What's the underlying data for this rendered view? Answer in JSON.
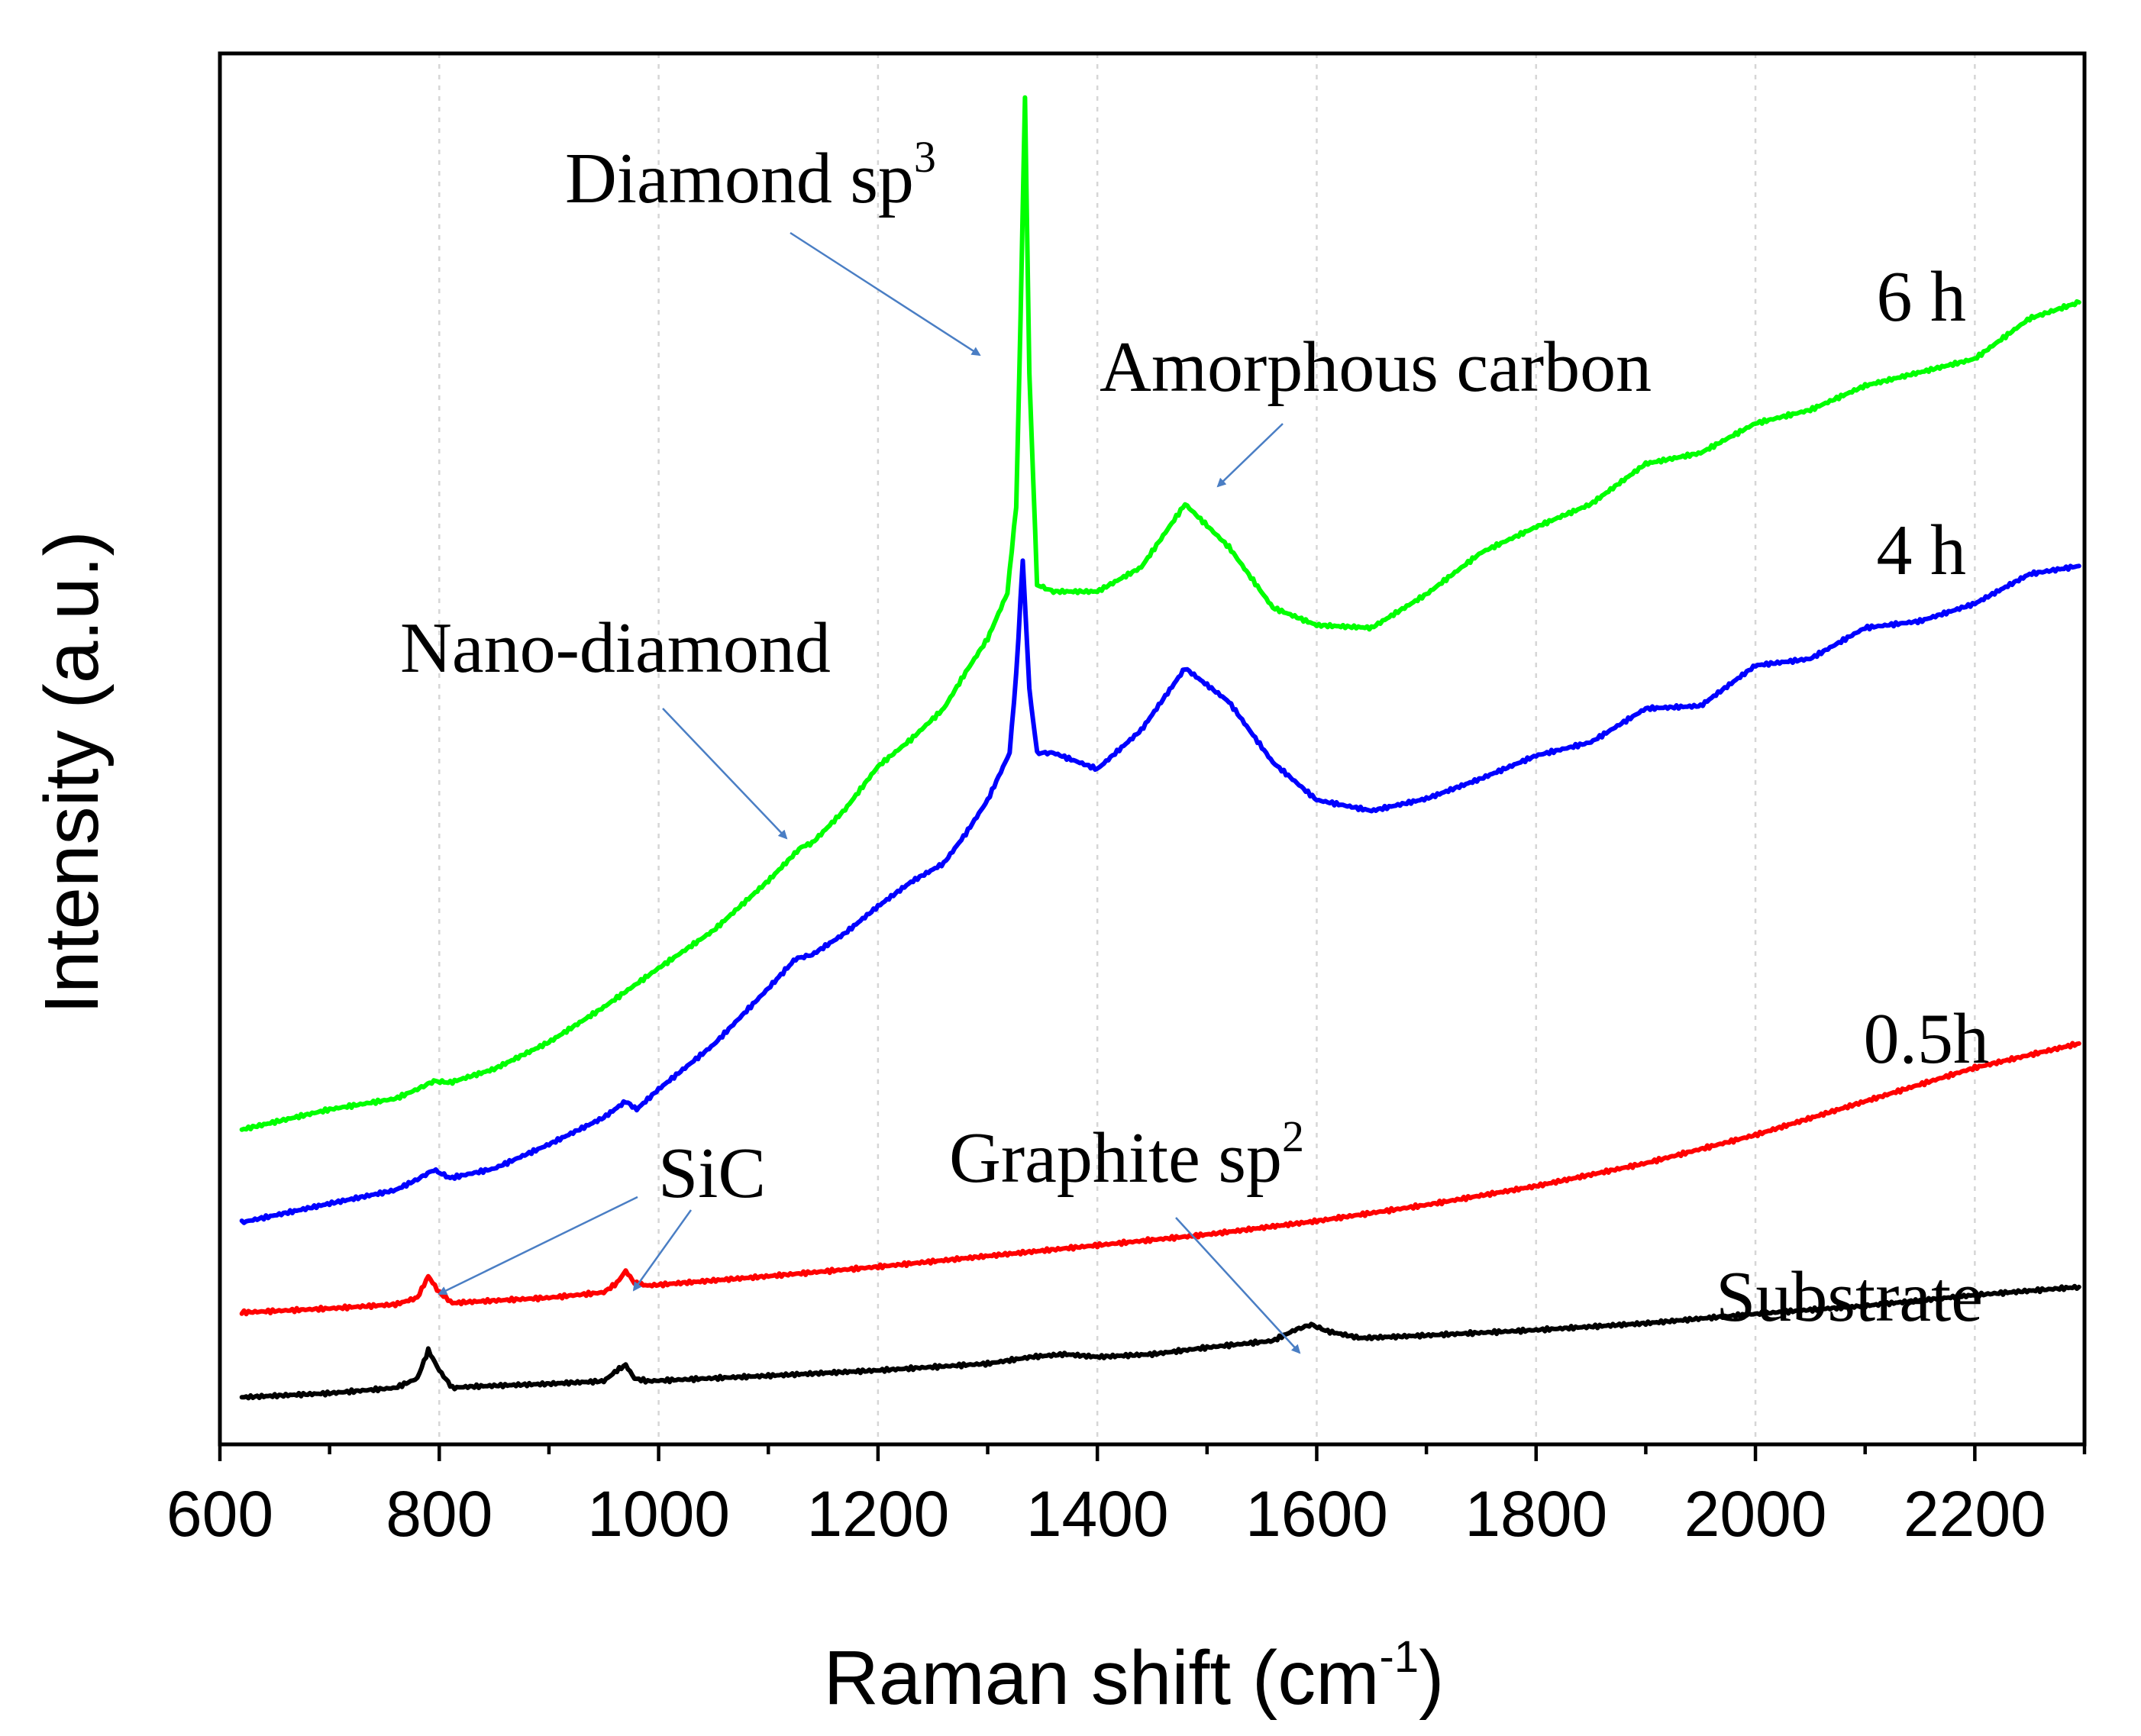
{
  "chart_data": {
    "type": "line",
    "title": "",
    "xlabel": "Raman shift (cm",
    "xlabel_sup": "-1",
    "xlabel_end": ")",
    "ylabel": "Intensity (a.u.)",
    "xlim": [
      600,
      2300
    ],
    "ylim": [
      0,
      1.0
    ],
    "xticks": [
      "600",
      "800",
      "1000",
      "1200",
      "1400",
      "1600",
      "1800",
      "2000",
      "2200"
    ],
    "grid": "vertical-dashed",
    "series": [
      {
        "name": "Substrate",
        "color": "#000000",
        "x": [
          620,
          700,
          760,
          780,
          790,
          800,
          812,
          830,
          900,
          950,
          962,
          970,
          978,
          990,
          1100,
          1200,
          1300,
          1340,
          1370,
          1400,
          1450,
          1500,
          1560,
          1580,
          1595,
          1610,
          1640,
          1700,
          1800,
          1900,
          2000,
          2100,
          2200,
          2295
        ],
        "y": [
          0.018,
          0.021,
          0.025,
          0.032,
          0.053,
          0.038,
          0.025,
          0.026,
          0.028,
          0.03,
          0.038,
          0.042,
          0.032,
          0.03,
          0.034,
          0.038,
          0.043,
          0.048,
          0.05,
          0.048,
          0.05,
          0.055,
          0.06,
          0.068,
          0.072,
          0.067,
          0.062,
          0.064,
          0.068,
          0.073,
          0.08,
          0.086,
          0.094,
          0.1
        ]
      },
      {
        "name": "0.5h",
        "color": "#ff0000",
        "x": [
          620,
          700,
          760,
          780,
          790,
          800,
          812,
          830,
          900,
          950,
          962,
          970,
          978,
          990,
          1100,
          1200,
          1300,
          1400,
          1500,
          1600,
          1700,
          1800,
          1900,
          2000,
          2100,
          2200,
          2295
        ],
        "y": [
          0.081,
          0.084,
          0.087,
          0.092,
          0.108,
          0.096,
          0.088,
          0.089,
          0.092,
          0.096,
          0.103,
          0.112,
          0.103,
          0.101,
          0.108,
          0.115,
          0.123,
          0.131,
          0.139,
          0.149,
          0.161,
          0.175,
          0.192,
          0.213,
          0.238,
          0.263,
          0.281
        ]
      },
      {
        "name": "4 h",
        "color": "#0000ff",
        "x": [
          620,
          700,
          760,
          780,
          795,
          810,
          850,
          900,
          950,
          970,
          980,
          1000,
          1050,
          1100,
          1125,
          1140,
          1170,
          1200,
          1230,
          1260,
          1280,
          1300,
          1320,
          1326,
          1332,
          1338,
          1345,
          1360,
          1400,
          1440,
          1480,
          1520,
          1560,
          1600,
          1650,
          1700,
          1750,
          1800,
          1850,
          1900,
          1950,
          2000,
          2050,
          2100,
          2150,
          2200,
          2250,
          2295
        ],
        "y": [
          0.148,
          0.162,
          0.172,
          0.18,
          0.187,
          0.181,
          0.188,
          0.206,
          0.226,
          0.238,
          0.232,
          0.247,
          0.28,
          0.322,
          0.344,
          0.347,
          0.363,
          0.383,
          0.401,
          0.415,
          0.437,
          0.462,
          0.497,
          0.555,
          0.64,
          0.545,
          0.497,
          0.497,
          0.485,
          0.514,
          0.56,
          0.535,
          0.49,
          0.462,
          0.454,
          0.463,
          0.478,
          0.495,
          0.505,
          0.53,
          0.532,
          0.562,
          0.567,
          0.59,
          0.595,
          0.608,
          0.63,
          0.636
        ]
      },
      {
        "name": "6 h",
        "color": "#00ff00",
        "x": [
          620,
          700,
          760,
          780,
          795,
          810,
          850,
          900,
          950,
          1000,
          1050,
          1100,
          1130,
          1140,
          1170,
          1200,
          1230,
          1260,
          1280,
          1300,
          1318,
          1326,
          1330,
          1334,
          1338,
          1345,
          1360,
          1400,
          1440,
          1480,
          1520,
          1560,
          1600,
          1650,
          1700,
          1750,
          1800,
          1850,
          1900,
          1950,
          2000,
          2050,
          2100,
          2150,
          2200,
          2250,
          2295
        ],
        "y": [
          0.217,
          0.232,
          0.24,
          0.247,
          0.253,
          0.252,
          0.262,
          0.282,
          0.308,
          0.337,
          0.365,
          0.402,
          0.427,
          0.43,
          0.455,
          0.487,
          0.507,
          0.53,
          0.557,
          0.582,
          0.616,
          0.68,
          0.82,
          0.985,
          0.78,
          0.622,
          0.617,
          0.617,
          0.635,
          0.682,
          0.65,
          0.605,
          0.592,
          0.59,
          0.615,
          0.646,
          0.665,
          0.682,
          0.712,
          0.72,
          0.742,
          0.752,
          0.77,
          0.78,
          0.79,
          0.82,
          0.832
        ]
      }
    ],
    "series_labels": [
      "6 h",
      "4 h",
      "0.5h",
      "Substrate"
    ],
    "annotations": [
      {
        "text": "Diamond sp",
        "sup": "3"
      },
      {
        "text": "Amorphous carbon"
      },
      {
        "text": "Nano-diamond"
      },
      {
        "text": "SiC"
      },
      {
        "text": "Graphite sp",
        "sup": "2"
      }
    ]
  }
}
